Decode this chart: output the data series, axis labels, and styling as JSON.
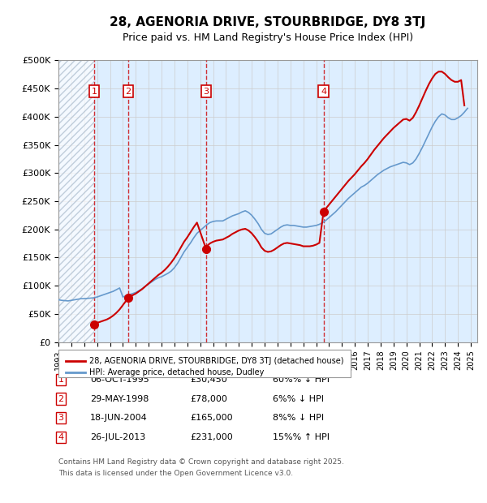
{
  "title": "28, AGENORIA DRIVE, STOURBRIDGE, DY8 3TJ",
  "subtitle": "Price paid vs. HM Land Registry's House Price Index (HPI)",
  "legend_label_red": "28, AGENORIA DRIVE, STOURBRIDGE, DY8 3TJ (detached house)",
  "legend_label_blue": "HPI: Average price, detached house, Dudley",
  "footer_line1": "Contains HM Land Registry data © Crown copyright and database right 2025.",
  "footer_line2": "This data is licensed under the Open Government Licence v3.0.",
  "transactions": [
    {
      "num": 1,
      "date": "06-OCT-1995",
      "price": 30450,
      "pct": "60%",
      "direction": "↓",
      "year": 1995.77
    },
    {
      "num": 2,
      "date": "29-MAY-1998",
      "price": 78000,
      "pct": "6%",
      "direction": "↓",
      "year": 1998.41
    },
    {
      "num": 3,
      "date": "18-JUN-2004",
      "price": 165000,
      "pct": "8%",
      "direction": "↓",
      "year": 2004.46
    },
    {
      "num": 4,
      "date": "26-JUL-2013",
      "price": 231000,
      "pct": "15%",
      "direction": "↑",
      "year": 2013.57
    }
  ],
  "xlim": [
    1993,
    2025.5
  ],
  "ylim": [
    0,
    500000
  ],
  "yticks": [
    0,
    50000,
    100000,
    150000,
    200000,
    250000,
    300000,
    350000,
    400000,
    450000,
    500000
  ],
  "ytick_labels": [
    "£0",
    "£50K",
    "£100K",
    "£150K",
    "£200K",
    "£250K",
    "£300K",
    "£350K",
    "£400K",
    "£450K",
    "£500K"
  ],
  "hpi_data": {
    "years": [
      1993.0,
      1993.25,
      1993.5,
      1993.75,
      1994.0,
      1994.25,
      1994.5,
      1994.75,
      1995.0,
      1995.25,
      1995.5,
      1995.75,
      1996.0,
      1996.25,
      1996.5,
      1996.75,
      1997.0,
      1997.25,
      1997.5,
      1997.75,
      1998.0,
      1998.25,
      1998.5,
      1998.75,
      1999.0,
      1999.25,
      1999.5,
      1999.75,
      2000.0,
      2000.25,
      2000.5,
      2000.75,
      2001.0,
      2001.25,
      2001.5,
      2001.75,
      2002.0,
      2002.25,
      2002.5,
      2002.75,
      2003.0,
      2003.25,
      2003.5,
      2003.75,
      2004.0,
      2004.25,
      2004.5,
      2004.75,
      2005.0,
      2005.25,
      2005.5,
      2005.75,
      2006.0,
      2006.25,
      2006.5,
      2006.75,
      2007.0,
      2007.25,
      2007.5,
      2007.75,
      2008.0,
      2008.25,
      2008.5,
      2008.75,
      2009.0,
      2009.25,
      2009.5,
      2009.75,
      2010.0,
      2010.25,
      2010.5,
      2010.75,
      2011.0,
      2011.25,
      2011.5,
      2011.75,
      2012.0,
      2012.25,
      2012.5,
      2012.75,
      2013.0,
      2013.25,
      2013.5,
      2013.75,
      2014.0,
      2014.25,
      2014.5,
      2014.75,
      2015.0,
      2015.25,
      2015.5,
      2015.75,
      2016.0,
      2016.25,
      2016.5,
      2016.75,
      2017.0,
      2017.25,
      2017.5,
      2017.75,
      2018.0,
      2018.25,
      2018.5,
      2018.75,
      2019.0,
      2019.25,
      2019.5,
      2019.75,
      2020.0,
      2020.25,
      2020.5,
      2020.75,
      2021.0,
      2021.25,
      2021.5,
      2021.75,
      2022.0,
      2022.25,
      2022.5,
      2022.75,
      2023.0,
      2023.25,
      2023.5,
      2023.75,
      2024.0,
      2024.25,
      2024.5,
      2024.75
    ],
    "values": [
      75000,
      74000,
      73500,
      73000,
      74000,
      75000,
      76000,
      77000,
      77000,
      77500,
      78000,
      78500,
      80000,
      82000,
      84000,
      86000,
      88000,
      90000,
      93000,
      96000,
      80000,
      82000,
      84000,
      86000,
      88000,
      91000,
      95000,
      99000,
      103000,
      107000,
      111000,
      114000,
      116000,
      119000,
      122000,
      126000,
      132000,
      140000,
      150000,
      160000,
      168000,
      176000,
      185000,
      193000,
      198000,
      203000,
      208000,
      212000,
      214000,
      215000,
      215000,
      215000,
      218000,
      221000,
      224000,
      226000,
      228000,
      231000,
      233000,
      230000,
      225000,
      218000,
      210000,
      200000,
      193000,
      191000,
      192000,
      196000,
      200000,
      204000,
      207000,
      208000,
      207000,
      207000,
      206000,
      205000,
      204000,
      204000,
      205000,
      206000,
      207000,
      209000,
      212000,
      216000,
      221000,
      226000,
      231000,
      237000,
      243000,
      249000,
      255000,
      260000,
      265000,
      270000,
      275000,
      278000,
      282000,
      287000,
      292000,
      297000,
      301000,
      305000,
      308000,
      311000,
      313000,
      315000,
      317000,
      319000,
      318000,
      315000,
      318000,
      325000,
      335000,
      346000,
      358000,
      370000,
      382000,
      392000,
      400000,
      405000,
      403000,
      398000,
      395000,
      395000,
      398000,
      402000,
      408000,
      415000
    ]
  },
  "price_paid_data": {
    "years": [
      1995.77,
      1995.8,
      1996.0,
      1996.25,
      1996.5,
      1996.75,
      1997.0,
      1997.25,
      1997.5,
      1997.75,
      1998.41,
      1998.5,
      1998.75,
      1999.0,
      1999.25,
      1999.5,
      1999.75,
      2000.0,
      2000.25,
      2000.5,
      2000.75,
      2001.0,
      2001.25,
      2001.5,
      2001.75,
      2002.0,
      2002.25,
      2002.5,
      2002.75,
      2003.0,
      2003.25,
      2003.5,
      2003.75,
      2004.46,
      2004.5,
      2004.75,
      2005.0,
      2005.25,
      2005.5,
      2005.75,
      2006.0,
      2006.25,
      2006.5,
      2006.75,
      2007.0,
      2007.25,
      2007.5,
      2007.75,
      2008.0,
      2008.25,
      2008.5,
      2008.75,
      2009.0,
      2009.25,
      2009.5,
      2009.75,
      2010.0,
      2010.25,
      2010.5,
      2010.75,
      2011.0,
      2011.25,
      2011.5,
      2011.75,
      2012.0,
      2012.25,
      2012.5,
      2012.75,
      2013.0,
      2013.25,
      2013.57,
      2013.75,
      2014.0,
      2014.25,
      2014.5,
      2014.75,
      2015.0,
      2015.25,
      2015.5,
      2015.75,
      2016.0,
      2016.25,
      2016.5,
      2016.75,
      2017.0,
      2017.25,
      2017.5,
      2017.75,
      2018.0,
      2018.25,
      2018.5,
      2018.75,
      2019.0,
      2019.25,
      2019.5,
      2019.75,
      2020.0,
      2020.25,
      2020.5,
      2020.75,
      2021.0,
      2021.25,
      2021.5,
      2021.75,
      2022.0,
      2022.25,
      2022.5,
      2022.75,
      2023.0,
      2023.25,
      2023.5,
      2023.75,
      2024.0,
      2024.25,
      2024.5
    ],
    "values": [
      30450,
      32000,
      34000,
      36000,
      38000,
      40000,
      43000,
      47000,
      52000,
      58000,
      78000,
      80000,
      83000,
      86000,
      90000,
      94000,
      99000,
      104000,
      109000,
      114000,
      119000,
      123000,
      128000,
      134000,
      141000,
      149000,
      158000,
      168000,
      178000,
      186000,
      195000,
      204000,
      212000,
      165000,
      170000,
      175000,
      178000,
      180000,
      181000,
      182000,
      185000,
      188000,
      192000,
      195000,
      198000,
      200000,
      201000,
      198000,
      193000,
      186000,
      178000,
      168000,
      162000,
      160000,
      161000,
      164000,
      168000,
      172000,
      175000,
      176000,
      175000,
      174000,
      173000,
      172000,
      170000,
      170000,
      170000,
      171000,
      173000,
      176000,
      231000,
      237000,
      244000,
      251000,
      258000,
      265000,
      272000,
      279000,
      286000,
      292000,
      298000,
      305000,
      312000,
      318000,
      325000,
      333000,
      341000,
      348000,
      355000,
      362000,
      368000,
      374000,
      380000,
      385000,
      390000,
      395000,
      396000,
      393000,
      398000,
      408000,
      420000,
      433000,
      446000,
      458000,
      468000,
      476000,
      480000,
      480000,
      476000,
      470000,
      465000,
      462000,
      462000,
      465000,
      420000
    ]
  },
  "hatch_end_year": 1995.77,
  "background_color": "#ffffff",
  "plot_bg_color": "#ddeeff",
  "hatch_color": "#aabbcc",
  "grid_color": "#cccccc",
  "red_color": "#cc0000",
  "blue_color": "#6699cc"
}
